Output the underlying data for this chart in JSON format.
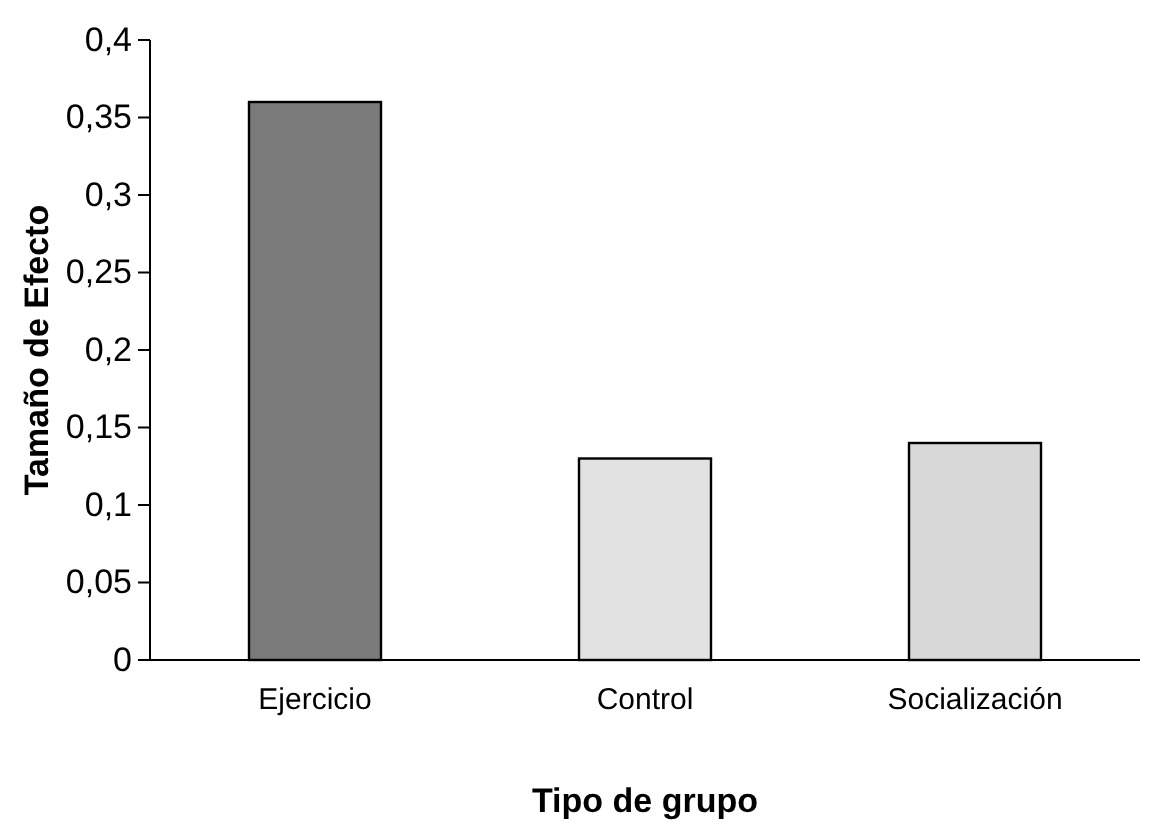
{
  "chart_data": {
    "type": "bar",
    "xlabel": "Tipo de grupo",
    "ylabel": "Tamaño de Efecto",
    "categories": [
      "Ejercicio",
      "Control",
      "Socialización"
    ],
    "values": [
      0.36,
      0.13,
      0.14
    ],
    "colors": [
      "#7a7a7a",
      "#e2e2e2",
      "#d8d8d8"
    ],
    "ylim": [
      0,
      0.4
    ],
    "yticks": [
      0,
      {
        "value": 0.05,
        "label": "0,05"
      },
      {
        "value": 0.1,
        "label": "0,1"
      },
      {
        "value": 0.15,
        "label": "0,15"
      },
      {
        "value": 0.2,
        "label": "0,2"
      },
      {
        "value": 0.25,
        "label": "0,25"
      },
      {
        "value": 0.3,
        "label": "0,3"
      },
      {
        "value": 0.35,
        "label": "0,35"
      },
      {
        "value": 0.4,
        "label": "0,4"
      }
    ],
    "grid": false
  }
}
